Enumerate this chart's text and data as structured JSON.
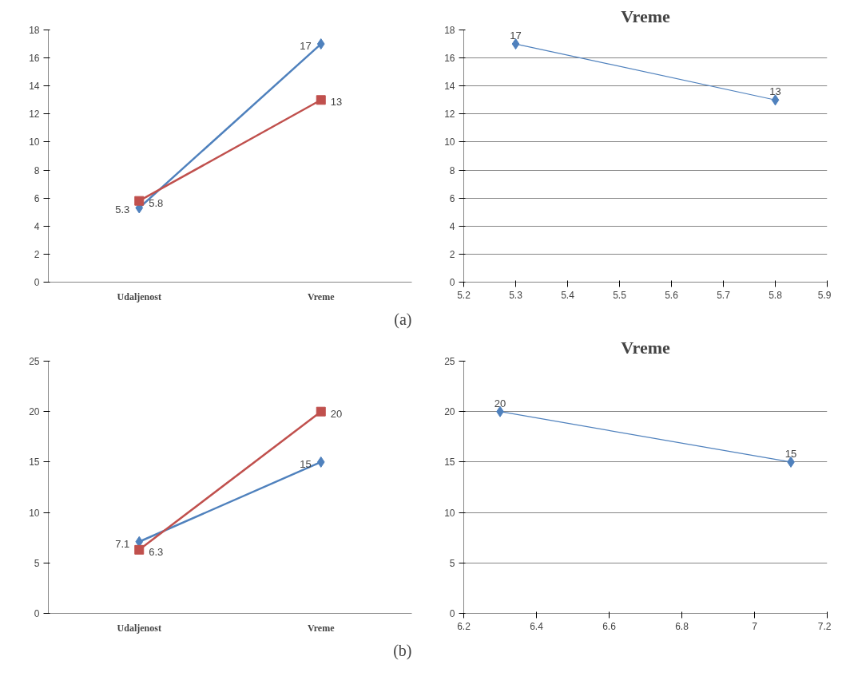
{
  "chart_data": [
    {
      "type": "line",
      "categories": [
        "Udaljenost",
        "Vreme"
      ],
      "ylim": [
        0,
        18
      ],
      "yticks": [
        0,
        2,
        4,
        6,
        8,
        10,
        12,
        14,
        16,
        18
      ],
      "grid": false,
      "data_labels": true,
      "annotations": [
        "(a)"
      ],
      "series": [
        {
          "color": "#4f81bd",
          "marker": "diamond",
          "values": [
            5.3,
            17
          ]
        },
        {
          "color": "#c0504d",
          "marker": "square",
          "values": [
            5.8,
            13
          ]
        }
      ]
    },
    {
      "type": "line",
      "title": "Vreme",
      "x": [
        5.3,
        5.8
      ],
      "xlim": [
        5.2,
        5.9
      ],
      "xticks": [
        5.2,
        5.3,
        5.4,
        5.5,
        5.6,
        5.7,
        5.8,
        5.9
      ],
      "ylim": [
        0,
        18
      ],
      "yticks": [
        0,
        2,
        4,
        6,
        8,
        10,
        12,
        14,
        16,
        18
      ],
      "grid": "y",
      "data_labels": true,
      "series": [
        {
          "color": "#4f81bd",
          "marker": "diamond",
          "values": [
            17,
            13
          ]
        }
      ]
    },
    {
      "type": "line",
      "categories": [
        "Udaljenost",
        "Vreme"
      ],
      "ylim": [
        0,
        25
      ],
      "yticks": [
        0,
        5,
        10,
        15,
        20,
        25
      ],
      "grid": false,
      "data_labels": true,
      "annotations": [
        "(b)"
      ],
      "series": [
        {
          "color": "#4f81bd",
          "marker": "diamond",
          "values": [
            7.1,
            15
          ]
        },
        {
          "color": "#c0504d",
          "marker": "square",
          "values": [
            6.3,
            20
          ]
        }
      ]
    },
    {
      "type": "line",
      "title": "Vreme",
      "x": [
        6.3,
        7.1
      ],
      "xlim": [
        6.2,
        7.2
      ],
      "xticks": [
        6.2,
        6.4,
        6.6,
        6.8,
        7,
        7.2
      ],
      "ylim": [
        0,
        25
      ],
      "yticks": [
        0,
        5,
        10,
        15,
        20,
        25
      ],
      "grid": "y",
      "data_labels": true,
      "series": [
        {
          "color": "#4f81bd",
          "marker": "diamond",
          "values": [
            20,
            15
          ]
        }
      ]
    }
  ]
}
